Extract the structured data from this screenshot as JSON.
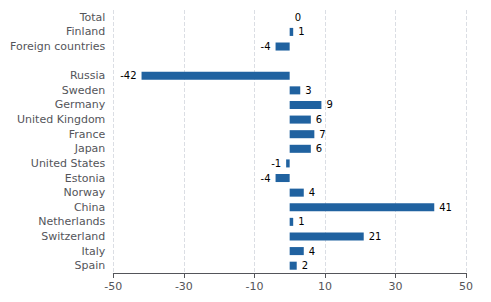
{
  "chart_data": {
    "type": "bar",
    "orientation": "horizontal",
    "categories": [
      "Total",
      "Finland",
      "Foreign countries",
      null,
      "Russia",
      "Sweden",
      "Germany",
      "United Kingdom",
      "France",
      "Japan",
      "United States",
      "Estonia",
      "Norway",
      "China",
      "Netherlands",
      "Switzerland",
      "Italy",
      "Spain"
    ],
    "values": [
      0,
      1,
      -4,
      null,
      -42,
      3,
      9,
      6,
      7,
      6,
      -1,
      -4,
      4,
      41,
      1,
      21,
      4,
      2
    ],
    "color": "#2062a0",
    "xlim": [
      -50,
      50
    ],
    "xticks": [
      -50,
      -30,
      -10,
      10,
      30,
      50
    ],
    "grid": true,
    "data_labels": true
  }
}
